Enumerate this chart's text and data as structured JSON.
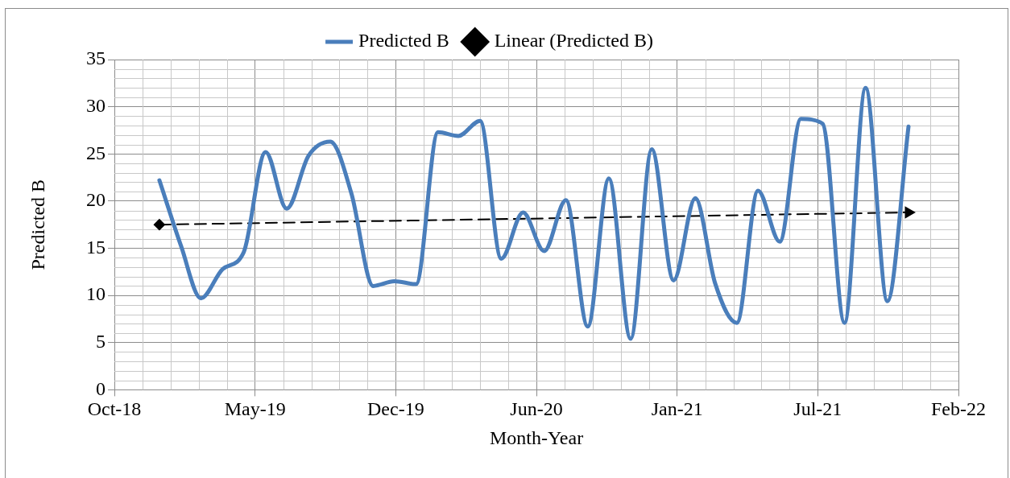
{
  "chart_data": {
    "type": "line",
    "xlabel": "Month-Year",
    "ylabel": "Predicted B",
    "x": [
      "2019-01",
      "2019-02",
      "2019-03",
      "2019-04",
      "2019-05",
      "2019-06",
      "2019-07",
      "2019-08",
      "2019-09",
      "2019-10",
      "2019-11",
      "2019-12",
      "2020-01",
      "2020-02",
      "2020-03",
      "2020-04",
      "2020-05",
      "2020-06",
      "2020-07",
      "2020-08",
      "2020-09",
      "2020-10",
      "2020-11",
      "2020-12",
      "2021-01",
      "2021-02",
      "2021-03",
      "2021-04",
      "2021-05",
      "2021-06",
      "2021-07",
      "2021-08",
      "2021-09",
      "2021-10",
      "2021-11",
      "2021-12"
    ],
    "series": [
      {
        "name": "Predicted B",
        "color": "#4a7ebb",
        "marker": "none",
        "line_style": "solid",
        "values": [
          22.2,
          15.2,
          9.7,
          12.8,
          14.6,
          25.2,
          19.2,
          24.8,
          26.3,
          20.8,
          11.0,
          11.5,
          11.2,
          27.3,
          26.9,
          28.5,
          13.9,
          18.8,
          14.7,
          20.1,
          6.7,
          22.4,
          5.4,
          25.5,
          11.6,
          20.3,
          11.3,
          7.1,
          21.1,
          15.7,
          28.7,
          28.2,
          7.1,
          32.0,
          9.4,
          27.9
        ]
      },
      {
        "name": "Linear (Predicted B)",
        "type": "line",
        "color": "#000000",
        "marker": "diamond",
        "line_style": "dashed",
        "x": [
          "2019-01",
          "2021-12"
        ],
        "values": [
          17.5,
          18.8
        ]
      }
    ],
    "xlim": [
      "2018-10-29",
      "2022-02-10"
    ],
    "xticks": [
      {
        "value": "2018-10-29",
        "label": "Oct-18"
      },
      {
        "value": "2019-05-17",
        "label": "May-19"
      },
      {
        "value": "2019-12-03",
        "label": "Dec-19"
      },
      {
        "value": "2020-06-20",
        "label": "Jun-20"
      },
      {
        "value": "2021-01-06",
        "label": "Jan-21"
      },
      {
        "value": "2021-07-25",
        "label": "Jul-21"
      },
      {
        "value": "2022-02-10",
        "label": "Feb-22"
      }
    ],
    "ylim": [
      0,
      35
    ],
    "yticks": [
      0,
      5,
      10,
      15,
      20,
      25,
      30,
      35
    ],
    "grid": true,
    "legend": "top"
  }
}
